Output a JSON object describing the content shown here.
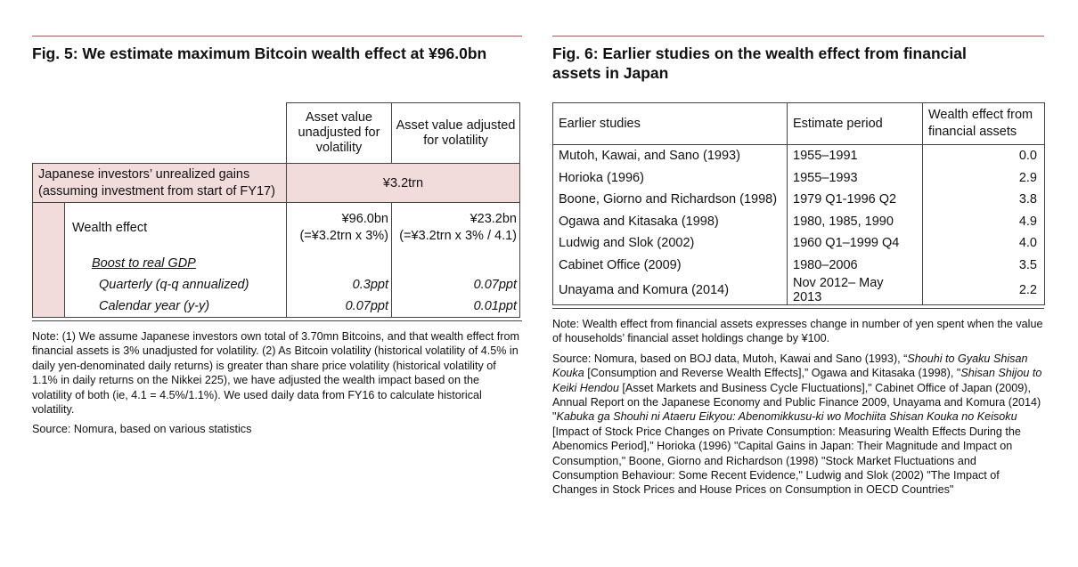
{
  "fig5": {
    "title": "Fig. 5: We estimate maximum Bitcoin wealth effect at ¥96.0bn",
    "col1_header": "Asset value unadjusted for volatility",
    "col2_header": "Asset value adjusted for volatility",
    "gains_label_line1": "Japanese investors’ unrealized gains",
    "gains_label_line2": "(assuming investment from start of FY17)",
    "gains_value": "¥3.2trn",
    "wealth_effect_label": "Wealth effect",
    "wealth_unadj_line1": "¥96.0bn",
    "wealth_unadj_line2": "(=¥3.2trn x 3%)",
    "wealth_adj_line1": "¥23.2bn",
    "wealth_adj_line2": "(=¥3.2trn x 3% / 4.1)",
    "boost_label": "Boost to real GDP",
    "quarterly_label": "Quarterly (q-q annualized)",
    "quarterly_unadj": "0.3ppt",
    "quarterly_adj": "0.07ppt",
    "calendar_label": "Calendar year (y-y)",
    "calendar_unadj": "0.07ppt",
    "calendar_adj": "0.01ppt",
    "note": "Note: (1) We assume Japanese investors own total of 3.70mn Bitcoins, and that wealth effect from financial assets is 3% unadjusted for volatility. (2)  As Bitcoin volatility (historical volatility of 4.5% in daily yen-denominated daily returns) is greater than share price volatility (historical volatility of 1.1% in daily returns on the Nikkei 225), we have adjusted the wealth impact based on the volatility of both (ie, 4.1 = 4.5%/1.1%). We used daily data from FY16 to calculate historical volatility.",
    "source": "Source: Nomura, based on various statistics"
  },
  "fig6": {
    "title_line1": "Fig. 6: Earlier studies on the wealth effect from financial",
    "title_line2": "assets in Japan",
    "headers": {
      "study": "Earlier studies",
      "period": "Estimate period",
      "effect_line1": "Wealth effect from",
      "effect_line2": "financial assets"
    },
    "rows": [
      {
        "study": "Mutoh, Kawai, and Sano (1993)",
        "period": "1955–1991",
        "effect": "0.0"
      },
      {
        "study": "Horioka (1996)",
        "period": "1955–1993",
        "effect": "2.9"
      },
      {
        "study": "Boone, Giorno and Richardson (1998)",
        "period": "1979 Q1-1996 Q2",
        "effect": "3.8"
      },
      {
        "study": "Ogawa and Kitasaka (1998)",
        "period": "1980, 1985, 1990",
        "effect": "4.9"
      },
      {
        "study": "Ludwig and Slok (2002)",
        "period": "1960 Q1–1999 Q4",
        "effect": "4.0"
      },
      {
        "study": "Cabinet Office (2009)",
        "period": "1980–2006",
        "effect": "3.5"
      },
      {
        "study": "Unayama and Komura (2014)",
        "period": "Nov 2012– May 2013",
        "effect": "2.2"
      }
    ],
    "note": "Note: Wealth effect from financial assets expresses change in number of yen spent when the value of households’ financial asset holdings change by ¥100.",
    "source_parts": [
      {
        "t": "Source: Nomura, based on BOJ data, Mutoh, Kawai and Sano (1993), “",
        "i": false
      },
      {
        "t": "Shouhi to Gyaku Shisan Kouka",
        "i": true
      },
      {
        "t": " [Consumption and Reverse Wealth Effects],” Ogawa and Kitasaka (1998), \"",
        "i": false
      },
      {
        "t": "Shisan Shijou to Keiki Hendou",
        "i": true
      },
      {
        "t": " [Asset Markets and Business Cycle Fluctuations],\" Cabinet Office of Japan (2009), Annual Report on the Japanese Economy and Public Finance 2009, Unayama and Komura (2014) \"",
        "i": false
      },
      {
        "t": "Kabuka ga Shouhi ni Ataeru Eikyou: Abenomikkusu-ki wo Mochiita Shisan Kouka no Keisoku",
        "i": true
      },
      {
        "t": " [Impact of Stock Price Changes on Private Consumption: Measuring Wealth Effects During the Abenomics Period],\" Horioka (1996) \"Capital Gains in Japan: Their Magnitude and Impact on Consumption,\" Boone, Giorno and Richardson (1998) \"Stock Market Fluctuations and Consumption Behaviour: Some Recent Evidence,\" Ludwig and Slok (2002) \"The Impact of Changes in Stock Prices and House Prices on Consumption in OECD Countries\"",
        "i": false
      }
    ]
  }
}
